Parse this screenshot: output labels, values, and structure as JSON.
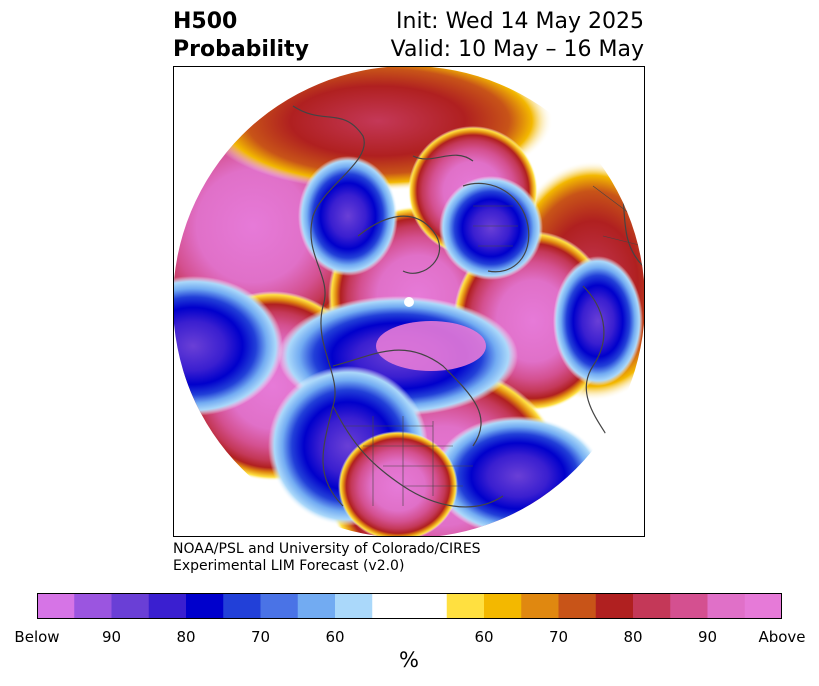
{
  "title": {
    "left_line1": "H500",
    "left_line2": "Probability",
    "right_line1": "Init: Wed 14 May 2025",
    "right_line2": "Valid: 10 May – 16 May"
  },
  "credit": {
    "line1": "NOAA/PSL and University of Colorado/CIRES",
    "line2": "Experimental LIM Forecast (v2.0)"
  },
  "colorbar": {
    "colors": [
      "#d674e6",
      "#9b55e0",
      "#6a3fd6",
      "#3a1fd0",
      "#0000cc",
      "#2240d8",
      "#4a73e6",
      "#72abf2",
      "#aad8fa",
      "#ffffff",
      "#ffffff",
      "#ffe040",
      "#f3b800",
      "#e08810",
      "#c85418",
      "#b02020",
      "#c43858",
      "#d45090",
      "#e070c8",
      "#e67ad8"
    ],
    "tick_labels": [
      "Below",
      "90",
      "80",
      "70",
      "60",
      "60",
      "70",
      "80",
      "90",
      "Above"
    ],
    "unit_label": "%"
  },
  "map": {
    "projection": "north-polar-stereographic",
    "pole_marker_color": "#ffffff",
    "above_color": "#e67ad8",
    "below_color": "#3a1fd0",
    "coastline_color": "#444444"
  }
}
